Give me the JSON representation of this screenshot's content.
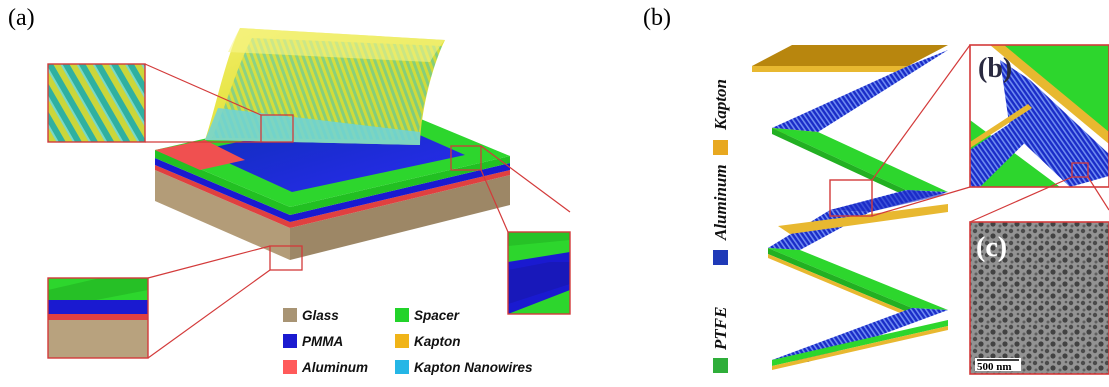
{
  "panels": {
    "a": {
      "label": "(a)",
      "legend": [
        {
          "label": "Glass",
          "color": "#a89474"
        },
        {
          "label": "Spacer",
          "color": "#22d32a"
        },
        {
          "label": "PMMA",
          "color": "#1a1ad0"
        },
        {
          "label": "Kapton",
          "color": "#f0b418"
        },
        {
          "label": "Aluminum",
          "color": "#ff5a5a"
        },
        {
          "label": "Kapton Nanowires",
          "color": "#25b6e6"
        }
      ]
    },
    "b": {
      "label": "(b)",
      "legend": [
        {
          "label": "Kapton",
          "color": "#e8a820"
        },
        {
          "label": "Aluminum",
          "color": "#1f3ab8"
        },
        {
          "label": "PTFE",
          "color": "#2fae3a"
        }
      ],
      "inset_b_label": "(b)",
      "inset_c_label": "(c)",
      "scale_bar": "500 nm"
    }
  },
  "colors": {
    "outline": "#d33a3a",
    "green": "#2dd62d",
    "blue": "#1a1ad0",
    "tan": "#b8a27e",
    "yellow": "#e8e02a",
    "cyan": "#3cc8c8"
  }
}
